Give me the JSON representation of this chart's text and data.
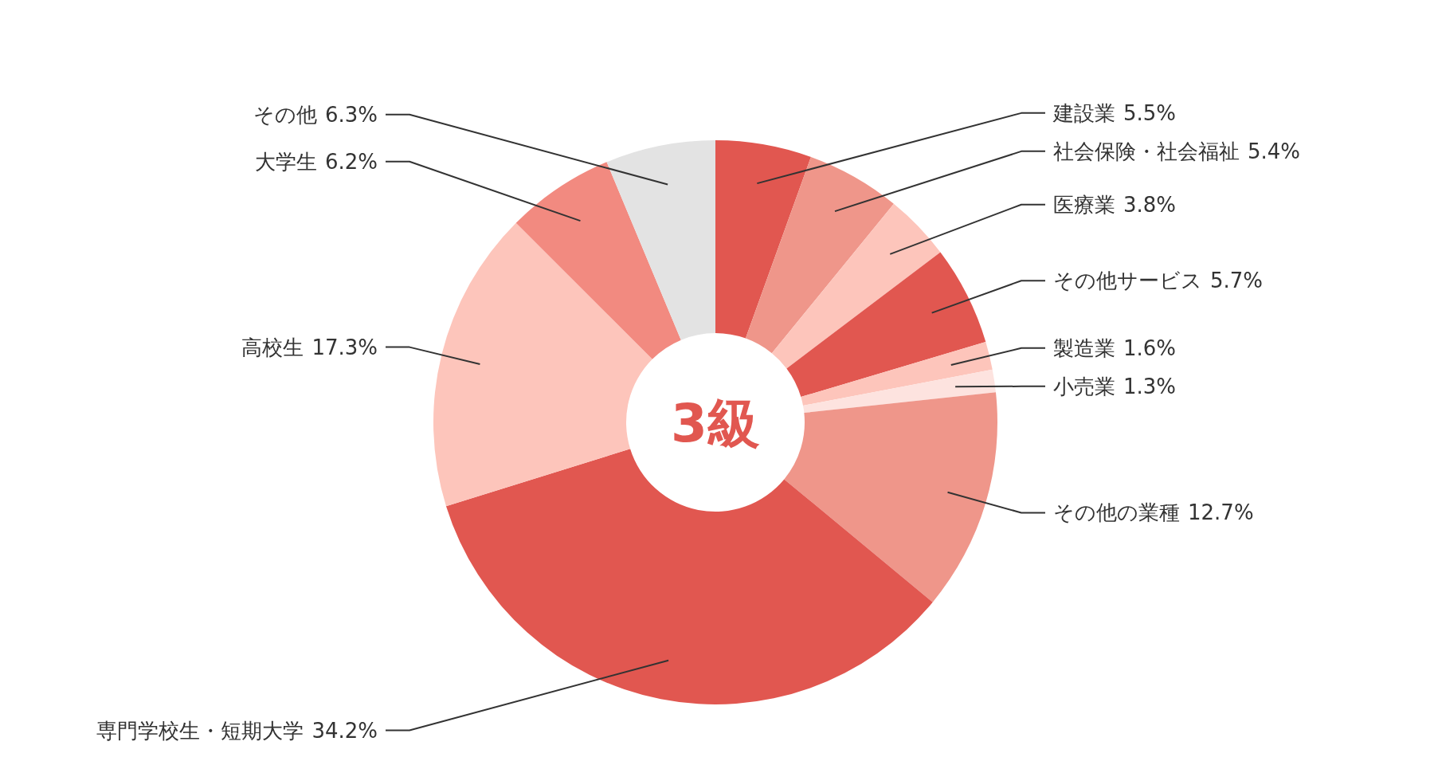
{
  "chart_data": {
    "type": "donut",
    "title": "3級",
    "categories": [
      "建設業",
      "社会保険・社会福祉",
      "医療業",
      "その他サービス",
      "製造業",
      "小売業",
      "その他の業種",
      "専門学校生・短期大学",
      "高校生",
      "大学生",
      "その他"
    ],
    "values": [
      5.5,
      5.4,
      3.8,
      5.7,
      1.6,
      1.3,
      12.7,
      34.2,
      17.3,
      6.2,
      6.3
    ],
    "colors": [
      "#e15750",
      "#ef968a",
      "#fdc5bb",
      "#e15750",
      "#fdc5bb",
      "#fde3df",
      "#ef968a",
      "#e15750",
      "#fdc5bb",
      "#f28a80",
      "#e3e3e3"
    ],
    "value_labels": [
      "5.5%",
      "5.4%",
      "3.8%",
      "5.7%",
      "1.6%",
      "1.3%",
      "12.7%",
      "34.2%",
      "17.3%",
      "6.2%",
      "6.3%"
    ]
  }
}
